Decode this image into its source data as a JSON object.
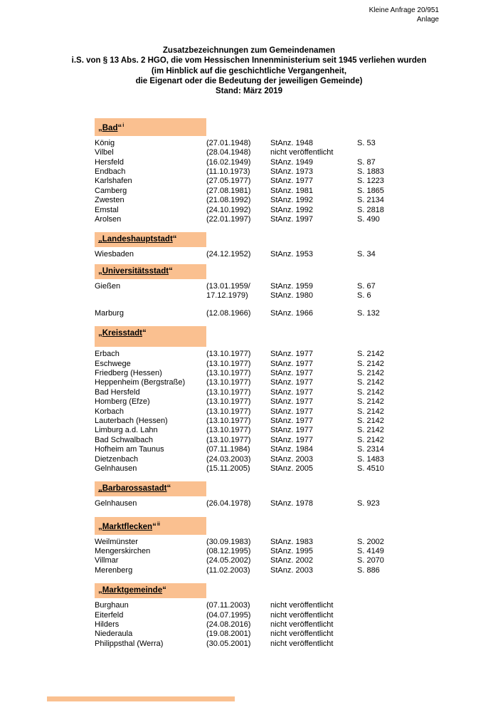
{
  "corner": {
    "line1": "Kleine Anfrage 20/951",
    "line2": "Anlage"
  },
  "title": {
    "lines": [
      "Zusatzbezeichnungen zum Gemeindenamen",
      "i.S. von § 13 Abs. 2 HGO, die vom Hessischen Innenministerium seit 1945 verliehen wurden",
      "(im Hinblick auf die geschichtliche Vergangenheit,",
      "die Eigenart oder die Bedeutung der jeweiligen Gemeinde)",
      "Stand: März 2019"
    ]
  },
  "colors": {
    "section_bg": "#FAC090"
  },
  "sections": [
    {
      "open_quote": "„",
      "label": "Bad",
      "close_quote": "“",
      "superscript": "i",
      "tall": false,
      "rows": [
        {
          "name": "König",
          "date": "(27.01.1948)",
          "ref": "StAnz. 1948",
          "page": "S. 53"
        },
        {
          "name": "Vilbel",
          "date": "(28.04.1948)",
          "ref": "nicht veröffentlicht",
          "page": ""
        },
        {
          "name": "Hersfeld",
          "date": "(16.02.1949)",
          "ref": "StAnz. 1949",
          "page": "S. 87"
        },
        {
          "name": "Endbach",
          "date": "(11.10.1973)",
          "ref": "StAnz. 1973",
          "page": "S. 1883"
        },
        {
          "name": "Karlshafen",
          "date": "(27.05.1977)",
          "ref": "StAnz. 1977",
          "page": "S. 1223"
        },
        {
          "name": "Camberg",
          "date": "(27.08.1981)",
          "ref": "StAnz. 1981",
          "page": "S. 1865"
        },
        {
          "name": "Zwesten",
          "date": "(21.08.1992)",
          "ref": "StAnz. 1992",
          "page": "S. 2134"
        },
        {
          "name": "Emstal",
          "date": "(24.10.1992)",
          "ref": "StAnz. 1992",
          "page": "S. 2818"
        },
        {
          "name": "Arolsen",
          "date": "(22.01.1997)",
          "ref": "StAnz. 1997",
          "page": "S. 490"
        }
      ]
    },
    {
      "open_quote": "„",
      "label": "Landeshauptstadt",
      "close_quote": "“",
      "superscript": "",
      "tall": false,
      "rows": [
        {
          "name": "Wiesbaden",
          "date": "(24.12.1952)",
          "ref": "StAnz. 1953",
          "page": "S. 34"
        }
      ]
    },
    {
      "open_quote": "„",
      "label": "Universitätsstadt",
      "close_quote": "“",
      "superscript": "",
      "tall": false,
      "rows": [
        {
          "name": "Gießen",
          "date": "(13.01.1959/",
          "ref": "StAnz. 1959",
          "page": "S. 67"
        },
        {
          "name": "",
          "date": "17.12.1979)",
          "ref": "StAnz. 1980",
          "page": "S. 6"
        },
        {
          "name": "Marburg",
          "date": "(12.08.1966)",
          "ref": "StAnz. 1966",
          "page": "S. 132",
          "gap_before": true
        }
      ]
    },
    {
      "open_quote": "„",
      "label": "Kreisstadt",
      "close_quote": "“",
      "superscript": "",
      "tall": true,
      "rows": [
        {
          "name": "Erbach",
          "date": "(13.10.1977)",
          "ref": "StAnz. 1977",
          "page": "S. 2142"
        },
        {
          "name": "Eschwege",
          "date": "(13.10.1977)",
          "ref": "StAnz. 1977",
          "page": "S. 2142"
        },
        {
          "name": "Friedberg (Hessen)",
          "date": "(13.10.1977)",
          "ref": "StAnz. 1977",
          "page": "S. 2142"
        },
        {
          "name": "Heppenheim (Bergstraße)",
          "date": "(13.10.1977)",
          "ref": "StAnz. 1977",
          "page": "S. 2142"
        },
        {
          "name": "Bad Hersfeld",
          "date": "(13.10.1977)",
          "ref": "StAnz. 1977",
          "page": "S. 2142"
        },
        {
          "name": "Homberg (Efze)",
          "date": "(13.10.1977)",
          "ref": "StAnz. 1977",
          "page": "S. 2142"
        },
        {
          "name": "Korbach",
          "date": "(13.10.1977)",
          "ref": "StAnz. 1977",
          "page": "S. 2142"
        },
        {
          "name": "Lauterbach (Hessen)",
          "date": "(13.10.1977)",
          "ref": "StAnz. 1977",
          "page": "S. 2142"
        },
        {
          "name": "Limburg a.d. Lahn",
          "date": "(13.10.1977)",
          "ref": "StAnz. 1977",
          "page": "S. 2142"
        },
        {
          "name": "Bad Schwalbach",
          "date": "(13.10.1977)",
          "ref": "StAnz. 1977",
          "page": "S. 2142"
        },
        {
          "name": "Hofheim am Taunus",
          "date": "(07.11.1984)",
          "ref": "StAnz. 1984",
          "page": "S. 2314"
        },
        {
          "name": "Dietzenbach",
          "date": "(24.03.2003)",
          "ref": "StAnz. 2003",
          "page": "S. 1483"
        },
        {
          "name": "Gelnhausen",
          "date": "(15.11.2005)",
          "ref": "StAnz. 2005",
          "page": "S. 4510"
        }
      ]
    },
    {
      "open_quote": "„",
      "label": "Barbarossastadt",
      "close_quote": "“",
      "superscript": "",
      "tall": false,
      "rows": [
        {
          "name": "Gelnhausen",
          "date": "(26.04.1978)",
          "ref": "StAnz. 1978",
          "page": "S. 923"
        }
      ]
    },
    {
      "open_quote": "„",
      "label": "Marktflecken",
      "close_quote": "“",
      "superscript": "ii",
      "tall": false,
      "rows": [
        {
          "name": "Weilmünster",
          "date": "(30.09.1983)",
          "ref": "StAnz. 1983",
          "page": "S. 2002"
        },
        {
          "name": "Mengerskirchen",
          "date": "(08.12.1995)",
          "ref": "StAnz. 1995",
          "page": "S. 4149"
        },
        {
          "name": "Villmar",
          "date": "(24.05.2002)",
          "ref": "StAnz. 2002",
          "page": "S. 2070"
        },
        {
          "name": "Merenberg",
          "date": "(11.02.2003)",
          "ref": "StAnz. 2003",
          "page": "S. 886"
        }
      ]
    },
    {
      "open_quote": "„",
      "label": "Marktgemeinde",
      "close_quote": "“",
      "superscript": "",
      "tall": false,
      "rows": [
        {
          "name": "Burghaun",
          "date": "(07.11.2003)",
          "ref": "nicht veröffentlicht",
          "page": ""
        },
        {
          "name": "Eiterfeld",
          "date": "(04.07.1995)",
          "ref": "nicht veröffentlicht",
          "page": ""
        },
        {
          "name": "Hilders",
          "date": "(24.08.2016)",
          "ref": "nicht veröffentlicht",
          "page": ""
        },
        {
          "name": "Niederaula",
          "date": "(19.08.2001)",
          "ref": "nicht veröffentlicht",
          "page": ""
        },
        {
          "name": "Philippsthal (Werra)",
          "date": "(30.05.2001)",
          "ref": "nicht veröffentlicht",
          "page": ""
        }
      ]
    }
  ]
}
